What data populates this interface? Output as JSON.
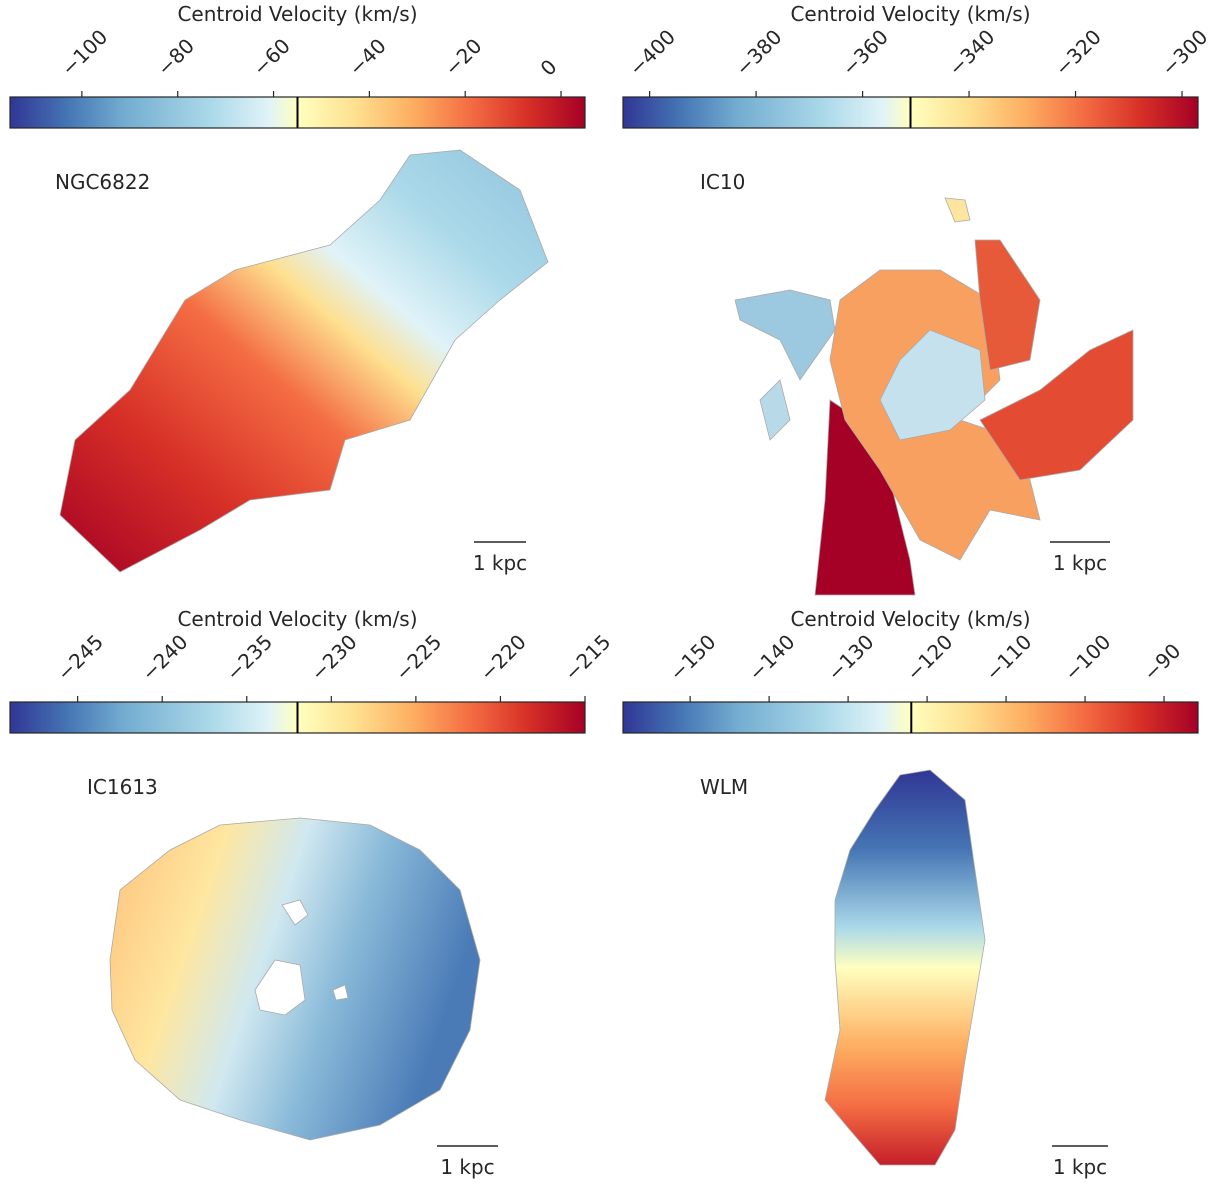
{
  "chart_data": [
    {
      "type": "heatmap",
      "title": "NGC6822",
      "colorbar_label": "Centroid Velocity (km/s)",
      "clim": [
        -115,
        5
      ],
      "cticks": [
        {
          "value": -100,
          "label": "−100"
        },
        {
          "value": -80,
          "label": "−80"
        },
        {
          "value": -60,
          "label": "−60"
        },
        {
          "value": -40,
          "label": "−40"
        },
        {
          "value": -20,
          "label": "−20"
        },
        0
      ],
      "systemic_velocity": -55,
      "scalebar_label": "1 kpc"
    },
    {
      "type": "heatmap",
      "title": "IC10",
      "colorbar_label": "Centroid Velocity (km/s)",
      "clim": [
        -405,
        -297
      ],
      "cticks": [
        {
          "value": -400,
          "label": "−400"
        },
        {
          "value": -380,
          "label": "−380"
        },
        {
          "value": -360,
          "label": "−360"
        },
        {
          "value": -340,
          "label": "−340"
        },
        {
          "value": -320,
          "label": "−320"
        },
        {
          "value": -300,
          "label": "−300"
        }
      ],
      "systemic_velocity": -351,
      "scalebar_label": "1 kpc"
    },
    {
      "type": "heatmap",
      "title": "IC1613",
      "colorbar_label": "Centroid Velocity (km/s)",
      "clim": [
        -249,
        -215
      ],
      "cticks": [
        {
          "value": -245,
          "label": "−245"
        },
        {
          "value": -240,
          "label": "−240"
        },
        {
          "value": -235,
          "label": "−235"
        },
        {
          "value": -230,
          "label": "−230"
        },
        {
          "value": -225,
          "label": "−225"
        },
        {
          "value": -220,
          "label": "−220"
        },
        {
          "value": -215,
          "label": "−215"
        }
      ],
      "systemic_velocity": -232,
      "scalebar_label": "1 kpc"
    },
    {
      "type": "heatmap",
      "title": "WLM",
      "colorbar_label": "Centroid Velocity (km/s)",
      "clim": [
        -158.5,
        -85.7
      ],
      "cticks": [
        {
          "value": -150,
          "label": "−150"
        },
        {
          "value": -140,
          "label": "−140"
        },
        {
          "value": -130,
          "label": "−130"
        },
        {
          "value": -120,
          "label": "−120"
        },
        {
          "value": -110,
          "label": "−110"
        },
        {
          "value": -100,
          "label": "−100"
        },
        {
          "value": -90,
          "label": "−90"
        }
      ],
      "systemic_velocity": -122,
      "scalebar_label": "1 kpc"
    }
  ]
}
